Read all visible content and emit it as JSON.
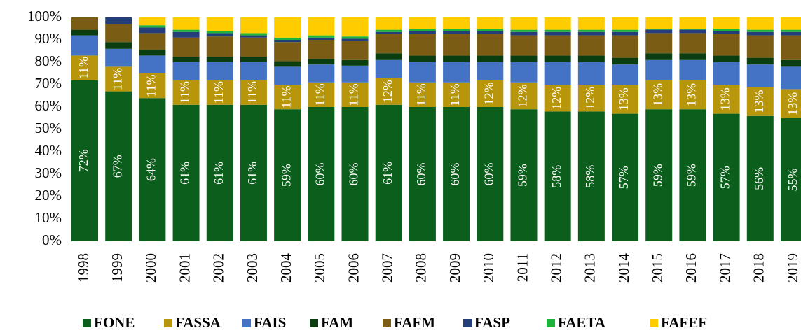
{
  "chart_data": {
    "type": "stacked_bar",
    "categories": [
      "1998",
      "1999",
      "2000",
      "2001",
      "2002",
      "2003",
      "2004",
      "2005",
      "2006",
      "2007",
      "2008",
      "2009",
      "2010",
      "2011",
      "2012",
      "2013",
      "2014",
      "2015",
      "2016",
      "2017",
      "2018",
      "2019"
    ],
    "series": [
      {
        "name": "FONE",
        "color": "#0b5e1b",
        "values": [
          72,
          67,
          64,
          61,
          61,
          61,
          59,
          60,
          60,
          61,
          60,
          60,
          60,
          59,
          58,
          58,
          57,
          59,
          59,
          57,
          56,
          55
        ],
        "value_labels": [
          "72%",
          "67%",
          "64%",
          "61%",
          "61%",
          "61%",
          "59%",
          "60%",
          "60%",
          "61%",
          "60%",
          "60%",
          "60%",
          "59%",
          "58%",
          "58%",
          "57%",
          "59%",
          "59%",
          "57%",
          "56%",
          "55%"
        ]
      },
      {
        "name": "FASSA",
        "color": "#b8960c",
        "values": [
          11,
          11,
          11,
          11,
          11,
          11,
          11,
          11,
          11,
          12,
          11,
          11,
          12,
          12,
          12,
          12,
          13,
          13,
          13,
          13,
          13,
          13
        ],
        "value_labels": [
          "11%",
          "11%",
          "11%",
          "11%",
          "11%",
          "11%",
          "11%",
          "11%",
          "11%",
          "12%",
          "11%",
          "11%",
          "12%",
          "12%",
          "12%",
          "12%",
          "13%",
          "13%",
          "13%",
          "13%",
          "13%",
          "13%"
        ]
      },
      {
        "name": "FAIS",
        "color": "#4472c4",
        "values": [
          9,
          8,
          8,
          8,
          8,
          8,
          8,
          8,
          7.5,
          8,
          9,
          9,
          8,
          9,
          10,
          10,
          9,
          9,
          9,
          10,
          10,
          10
        ]
      },
      {
        "name": "FAM",
        "color": "#0a3d0f",
        "values": [
          2.5,
          3,
          2.5,
          2.5,
          2.5,
          2.5,
          2.5,
          2.5,
          2.5,
          3,
          3,
          3,
          3,
          3,
          3,
          3,
          3,
          3,
          3,
          3,
          3,
          3
        ]
      },
      {
        "name": "FAFM",
        "color": "#7a5c14",
        "values": [
          5.5,
          8,
          7.5,
          8.5,
          9,
          8.5,
          8.5,
          8.5,
          8.5,
          8.5,
          9.5,
          9.5,
          9.5,
          9,
          9,
          9,
          10,
          9,
          9,
          9.5,
          10,
          11
        ]
      },
      {
        "name": "FASP",
        "color": "#243f77",
        "values": [
          0,
          3,
          2.5,
          2.5,
          1.5,
          1,
          1,
          1,
          1,
          1,
          1.5,
          1.5,
          1.5,
          1.5,
          1.5,
          1.5,
          1.5,
          1.5,
          1.5,
          1.5,
          1.5,
          1.5
        ]
      },
      {
        "name": "FAETA",
        "color": "#1db33a",
        "values": [
          0,
          0,
          1,
          1,
          1,
          1,
          1,
          1,
          1,
          1,
          1,
          1,
          1,
          1,
          1,
          1,
          1,
          0.5,
          0.5,
          1,
          1,
          1
        ]
      },
      {
        "name": "FAFEF",
        "color": "#ffcc00",
        "values": [
          0,
          0,
          3.5,
          5.5,
          6,
          7,
          9,
          8,
          8.5,
          5.5,
          5,
          5,
          5,
          5.5,
          5.5,
          5.5,
          5.5,
          5,
          5,
          5,
          5.5,
          5.5
        ]
      }
    ],
    "ylim": [
      0,
      100
    ],
    "yticks": [
      {
        "value": 0,
        "label": "0%"
      },
      {
        "value": 10,
        "label": "10%"
      },
      {
        "value": 20,
        "label": "20%"
      },
      {
        "value": 30,
        "label": "30%"
      },
      {
        "value": 40,
        "label": "40%"
      },
      {
        "value": 50,
        "label": "50%"
      },
      {
        "value": 60,
        "label": "60%"
      },
      {
        "value": 70,
        "label": "70%"
      },
      {
        "value": 80,
        "label": "80%"
      },
      {
        "value": 90,
        "label": "90%"
      },
      {
        "value": 100,
        "label": "100%"
      }
    ],
    "legend": "bottom"
  }
}
